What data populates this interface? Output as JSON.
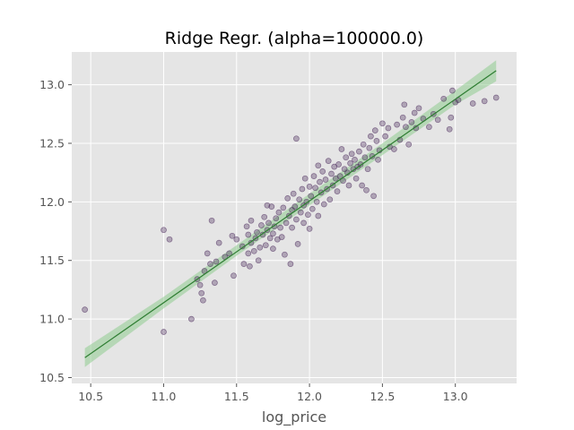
{
  "chart_data": {
    "type": "scatter",
    "title": "Ridge Regr. (alpha=100000.0)",
    "xlabel": "log_price",
    "ylabel": "",
    "xlim": [
      10.37,
      13.42
    ],
    "ylim": [
      10.45,
      13.28
    ],
    "xticks": [
      10.5,
      11.0,
      11.5,
      12.0,
      12.5,
      13.0
    ],
    "yticks": [
      10.5,
      11.0,
      11.5,
      12.0,
      12.5,
      13.0
    ],
    "xtick_labels": [
      "10.5",
      "11.0",
      "11.5",
      "12.0",
      "12.5",
      "13.0"
    ],
    "ytick_labels": [
      "10.5",
      "11.0",
      "11.5",
      "12.0",
      "12.5",
      "13.0"
    ],
    "grid": true,
    "colors": {
      "background": "#e5e5e5",
      "grid": "#ffffff",
      "points": "#4b2a5c",
      "fit_line": "#2e7d32",
      "confidence_band": "#8fcc8f"
    },
    "fit_line": {
      "x": [
        10.46,
        13.28
      ],
      "y": [
        10.67,
        13.12
      ]
    },
    "confidence_band": {
      "x": [
        10.46,
        11.0,
        11.5,
        12.0,
        12.5,
        13.0,
        13.28
      ],
      "upper": [
        10.75,
        11.19,
        11.63,
        12.07,
        12.5,
        12.95,
        13.21
      ],
      "lower": [
        10.59,
        11.09,
        11.54,
        11.97,
        12.4,
        12.83,
        13.03
      ]
    },
    "points": [
      [
        10.46,
        11.08
      ],
      [
        11.0,
        10.89
      ],
      [
        11.0,
        11.76
      ],
      [
        11.04,
        11.68
      ],
      [
        11.19,
        11.0
      ],
      [
        11.23,
        11.34
      ],
      [
        11.25,
        11.29
      ],
      [
        11.26,
        11.22
      ],
      [
        11.27,
        11.16
      ],
      [
        11.28,
        11.41
      ],
      [
        11.3,
        11.56
      ],
      [
        11.32,
        11.47
      ],
      [
        11.33,
        11.84
      ],
      [
        11.35,
        11.31
      ],
      [
        11.36,
        11.49
      ],
      [
        11.38,
        11.65
      ],
      [
        11.42,
        11.53
      ],
      [
        11.45,
        11.56
      ],
      [
        11.47,
        11.71
      ],
      [
        11.48,
        11.37
      ],
      [
        11.5,
        11.68
      ],
      [
        11.54,
        11.62
      ],
      [
        11.55,
        11.47
      ],
      [
        11.57,
        11.79
      ],
      [
        11.58,
        11.72
      ],
      [
        11.58,
        11.56
      ],
      [
        11.59,
        11.45
      ],
      [
        11.6,
        11.84
      ],
      [
        11.6,
        11.65
      ],
      [
        11.62,
        11.58
      ],
      [
        11.63,
        11.69
      ],
      [
        11.64,
        11.74
      ],
      [
        11.65,
        11.5
      ],
      [
        11.66,
        11.61
      ],
      [
        11.67,
        11.8
      ],
      [
        11.68,
        11.72
      ],
      [
        11.69,
        11.87
      ],
      [
        11.7,
        11.63
      ],
      [
        11.71,
        11.76
      ],
      [
        11.71,
        11.97
      ],
      [
        11.72,
        11.82
      ],
      [
        11.73,
        11.69
      ],
      [
        11.74,
        11.96
      ],
      [
        11.75,
        11.73
      ],
      [
        11.75,
        11.6
      ],
      [
        11.76,
        11.79
      ],
      [
        11.77,
        11.86
      ],
      [
        11.78,
        11.68
      ],
      [
        11.79,
        11.91
      ],
      [
        11.8,
        11.78
      ],
      [
        11.81,
        11.7
      ],
      [
        11.82,
        11.95
      ],
      [
        11.83,
        11.55
      ],
      [
        11.84,
        11.82
      ],
      [
        11.85,
        12.03
      ],
      [
        11.86,
        11.88
      ],
      [
        11.87,
        11.47
      ],
      [
        11.88,
        11.93
      ],
      [
        11.88,
        11.78
      ],
      [
        11.89,
        12.07
      ],
      [
        11.9,
        11.96
      ],
      [
        11.91,
        12.54
      ],
      [
        11.91,
        11.85
      ],
      [
        11.92,
        11.64
      ],
      [
        11.93,
        12.02
      ],
      [
        11.94,
        11.91
      ],
      [
        11.95,
        12.11
      ],
      [
        11.96,
        11.97
      ],
      [
        11.96,
        11.82
      ],
      [
        11.97,
        12.2
      ],
      [
        11.98,
        12.0
      ],
      [
        11.99,
        11.89
      ],
      [
        12.0,
        12.13
      ],
      [
        12.0,
        11.77
      ],
      [
        12.01,
        12.05
      ],
      [
        12.02,
        11.94
      ],
      [
        12.03,
        12.22
      ],
      [
        12.04,
        12.12
      ],
      [
        12.05,
        12.0
      ],
      [
        12.06,
        12.31
      ],
      [
        12.06,
        11.88
      ],
      [
        12.07,
        12.17
      ],
      [
        12.08,
        12.08
      ],
      [
        12.09,
        12.26
      ],
      [
        12.1,
        11.98
      ],
      [
        12.11,
        12.19
      ],
      [
        12.12,
        12.11
      ],
      [
        12.13,
        12.35
      ],
      [
        12.14,
        12.02
      ],
      [
        12.15,
        12.24
      ],
      [
        12.16,
        12.14
      ],
      [
        12.17,
        12.3
      ],
      [
        12.18,
        12.2
      ],
      [
        12.19,
        12.09
      ],
      [
        12.2,
        12.32
      ],
      [
        12.21,
        12.22
      ],
      [
        12.22,
        12.45
      ],
      [
        12.23,
        12.18
      ],
      [
        12.24,
        12.28
      ],
      [
        12.25,
        12.38
      ],
      [
        12.26,
        12.25
      ],
      [
        12.27,
        12.14
      ],
      [
        12.28,
        12.33
      ],
      [
        12.29,
        12.41
      ],
      [
        12.3,
        12.28
      ],
      [
        12.31,
        12.36
      ],
      [
        12.32,
        12.2
      ],
      [
        12.33,
        12.3
      ],
      [
        12.34,
        12.43
      ],
      [
        12.35,
        12.32
      ],
      [
        12.36,
        12.14
      ],
      [
        12.37,
        12.49
      ],
      [
        12.38,
        12.38
      ],
      [
        12.39,
        12.1
      ],
      [
        12.4,
        12.28
      ],
      [
        12.41,
        12.46
      ],
      [
        12.42,
        12.56
      ],
      [
        12.43,
        12.39
      ],
      [
        12.44,
        12.05
      ],
      [
        12.45,
        12.61
      ],
      [
        12.46,
        12.52
      ],
      [
        12.47,
        12.36
      ],
      [
        12.48,
        12.44
      ],
      [
        12.5,
        12.67
      ],
      [
        12.52,
        12.56
      ],
      [
        12.54,
        12.63
      ],
      [
        12.55,
        12.47
      ],
      [
        12.58,
        12.45
      ],
      [
        12.6,
        12.66
      ],
      [
        12.62,
        12.53
      ],
      [
        12.64,
        12.72
      ],
      [
        12.65,
        12.83
      ],
      [
        12.66,
        12.64
      ],
      [
        12.68,
        12.49
      ],
      [
        12.7,
        12.68
      ],
      [
        12.72,
        12.76
      ],
      [
        12.73,
        12.63
      ],
      [
        12.75,
        12.8
      ],
      [
        12.78,
        12.71
      ],
      [
        12.82,
        12.64
      ],
      [
        12.85,
        12.75
      ],
      [
        12.88,
        12.7
      ],
      [
        12.92,
        12.88
      ],
      [
        12.96,
        12.62
      ],
      [
        12.97,
        12.72
      ],
      [
        12.98,
        12.95
      ],
      [
        13.0,
        12.85
      ],
      [
        13.02,
        12.87
      ],
      [
        13.12,
        12.84
      ],
      [
        13.2,
        12.86
      ],
      [
        13.28,
        12.89
      ]
    ]
  }
}
